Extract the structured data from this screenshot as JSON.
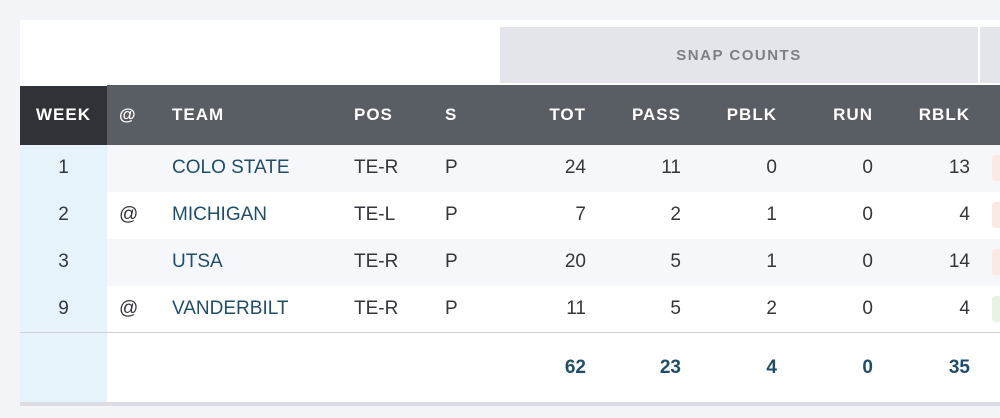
{
  "group_header": "SNAP COUNTS",
  "columns": {
    "week": "WEEK",
    "at": "@",
    "team": "TEAM",
    "pos": "POS",
    "s": "S",
    "tot": "TOT",
    "pass": "PASS",
    "pblk": "PBLK",
    "run": "RUN",
    "rblk": "RBLK"
  },
  "rows": [
    {
      "week": "1",
      "at": "",
      "team": "COLO STATE",
      "pos": "TE-R",
      "s": "P",
      "tot": "24",
      "pass": "11",
      "pblk": "0",
      "run": "0",
      "rblk": "13",
      "edge_color": "#fbe9e4"
    },
    {
      "week": "2",
      "at": "@",
      "team": "MICHIGAN",
      "pos": "TE-L",
      "s": "P",
      "tot": "7",
      "pass": "2",
      "pblk": "1",
      "run": "0",
      "rblk": "4",
      "edge_color": "#fbe9e4"
    },
    {
      "week": "3",
      "at": "",
      "team": "UTSA",
      "pos": "TE-R",
      "s": "P",
      "tot": "20",
      "pass": "5",
      "pblk": "1",
      "run": "0",
      "rblk": "14",
      "edge_color": "#fbe9e4"
    },
    {
      "week": "9",
      "at": "@",
      "team": "VANDERBILT",
      "pos": "TE-R",
      "s": "P",
      "tot": "11",
      "pass": "5",
      "pblk": "2",
      "run": "0",
      "rblk": "4",
      "edge_color": "#e8f3e6"
    }
  ],
  "totals": {
    "tot": "62",
    "pass": "23",
    "pblk": "4",
    "run": "0",
    "rblk": "35"
  }
}
